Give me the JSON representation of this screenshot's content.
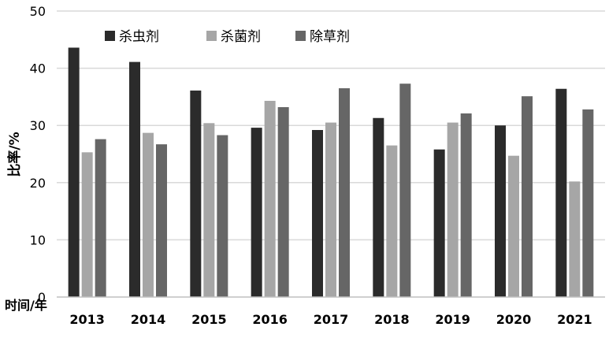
{
  "chart_data": {
    "type": "bar",
    "title": "",
    "xlabel": "时间/年",
    "ylabel": "比率/%",
    "categories": [
      "2013",
      "2014",
      "2015",
      "2016",
      "2017",
      "2018",
      "2019",
      "2020",
      "2021"
    ],
    "series": [
      {
        "name": "杀虫剂",
        "color": "#2b2b2b",
        "values": [
          43.6,
          41.1,
          36.1,
          29.6,
          29.2,
          31.3,
          25.8,
          30.0,
          36.4
        ]
      },
      {
        "name": "杀菌剂",
        "color": "#a6a6a6",
        "values": [
          25.3,
          28.7,
          30.4,
          34.3,
          30.5,
          26.5,
          30.5,
          24.7,
          20.2
        ]
      },
      {
        "name": "除草剂",
        "color": "#666666",
        "values": [
          27.6,
          26.7,
          28.3,
          33.2,
          36.5,
          37.3,
          32.1,
          35.1,
          32.8
        ]
      }
    ],
    "ylim": [
      0,
      50
    ],
    "yticks": [
      0,
      10,
      20,
      30,
      40,
      50
    ],
    "grid": true,
    "legend_position": "top-left"
  }
}
